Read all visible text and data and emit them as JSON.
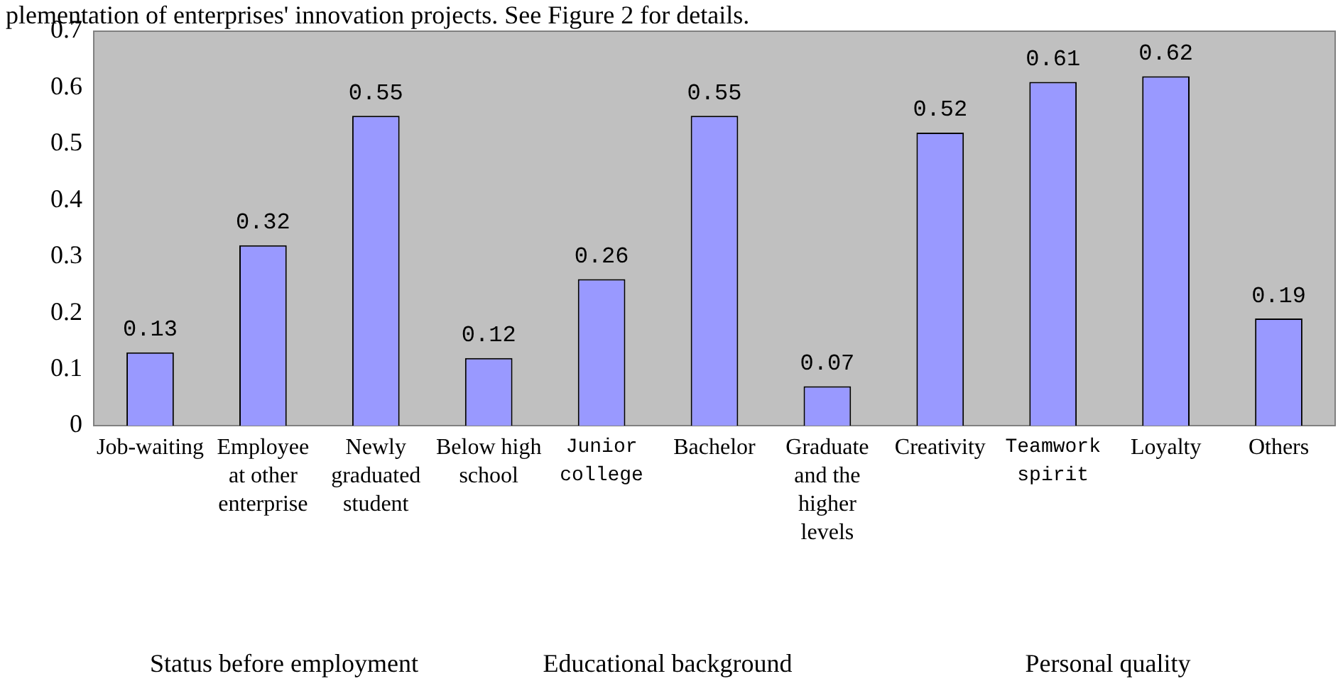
{
  "chart_data": {
    "type": "bar",
    "categories": [
      "Job-waiting",
      "Employee at other enterprise",
      "Newly graduated student",
      "Below high school",
      "Junior college",
      "Bachelor",
      "Graduate and the higher levels",
      "Creativity",
      "Teamwork spirit",
      "Loyalty",
      "Others"
    ],
    "values": [
      0.13,
      0.32,
      0.55,
      0.12,
      0.26,
      0.55,
      0.07,
      0.52,
      0.61,
      0.62,
      0.19
    ],
    "color": "#9999ff",
    "ylim": [
      0,
      0.7
    ],
    "yticks": [
      0,
      0.1,
      0.2,
      0.3,
      0.4,
      0.5,
      0.6,
      0.7
    ],
    "grid": false,
    "legend": false,
    "data_labels": true,
    "annotations": [
      "plementation of enterprises' innovation projects. See Figure 2 for details.",
      "Status before employment",
      "Educational background",
      "Personal quality"
    ]
  }
}
